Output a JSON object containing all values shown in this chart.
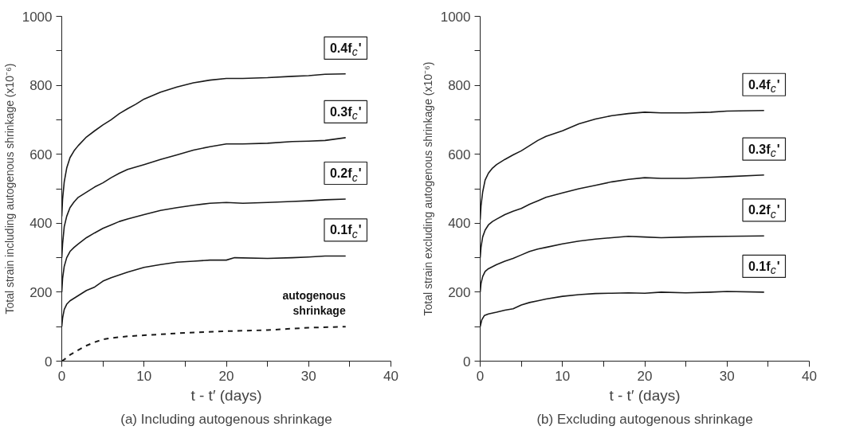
{
  "chart_data": [
    {
      "type": "line",
      "title": "(a) Including autogenous shrinkage",
      "xlabel": "t - t′ (days)",
      "ylabel": "Total strain including autogenous shrinkage (x10⁻⁶)",
      "xlim": [
        0,
        40
      ],
      "ylim": [
        0,
        1000
      ],
      "xticks": [
        0,
        {
          "value": 5,
          "label": null
        },
        10,
        {
          "value": 15,
          "label": null
        },
        20,
        {
          "value": 25,
          "label": null
        },
        30,
        {
          "value": 35,
          "label": null
        },
        40
      ],
      "yticks": [
        0,
        {
          "value": 100,
          "label": null
        },
        200,
        {
          "value": 300,
          "label": null
        },
        400,
        {
          "value": 500,
          "label": null
        },
        600,
        {
          "value": 700,
          "label": null
        },
        800,
        {
          "value": 900,
          "label": null
        },
        1000
      ],
      "grid": false,
      "marker": "none",
      "line_style": "solid",
      "series": [
        {
          "name": "0.4f$_{c}$'",
          "color": "#1a1a1a",
          "x": [
            0,
            0.1,
            0.3,
            0.6,
            1,
            1.5,
            2,
            3,
            4,
            5,
            6,
            7,
            8,
            9,
            10,
            12,
            14,
            16,
            18,
            20,
            22,
            25,
            28,
            30,
            32,
            34.5
          ],
          "values": [
            420,
            470,
            520,
            560,
            590,
            610,
            625,
            650,
            668,
            685,
            700,
            718,
            732,
            745,
            760,
            780,
            795,
            807,
            815,
            820,
            820,
            822,
            826,
            828,
            832,
            833
          ]
        },
        {
          "name": "0.3f$_{c}$'",
          "color": "#1a1a1a",
          "x": [
            0,
            0.1,
            0.3,
            0.6,
            1,
            1.5,
            2,
            3,
            4,
            5,
            6,
            7,
            8,
            10,
            12,
            14,
            16,
            18,
            20,
            22,
            25,
            28,
            30,
            32,
            34.5
          ],
          "values": [
            300,
            340,
            390,
            420,
            445,
            462,
            475,
            490,
            505,
            517,
            532,
            545,
            556,
            570,
            585,
            598,
            612,
            622,
            630,
            630,
            632,
            637,
            638,
            640,
            648
          ]
        },
        {
          "name": "0.2f$_{c}$'",
          "color": "#1a1a1a",
          "x": [
            0,
            0.1,
            0.3,
            0.6,
            1,
            1.5,
            2,
            3,
            4,
            5,
            6,
            7,
            8,
            10,
            12,
            14,
            16,
            18,
            20,
            22,
            25,
            28,
            30,
            32,
            34.5
          ],
          "values": [
            200,
            240,
            275,
            300,
            318,
            330,
            340,
            358,
            372,
            385,
            395,
            405,
            412,
            425,
            437,
            445,
            452,
            458,
            460,
            458,
            460,
            463,
            465,
            468,
            470
          ]
        },
        {
          "name": "0.1f$_{c}$'",
          "color": "#1a1a1a",
          "x": [
            0,
            0.1,
            0.3,
            0.6,
            1,
            2,
            3,
            4,
            5,
            6,
            7,
            8,
            10,
            12,
            14,
            16,
            18,
            20,
            21,
            25,
            28,
            30,
            32,
            34.5
          ],
          "values": [
            100,
            125,
            150,
            165,
            175,
            190,
            205,
            215,
            232,
            242,
            250,
            258,
            272,
            280,
            287,
            290,
            293,
            293,
            300,
            298,
            300,
            302,
            305,
            305
          ]
        },
        {
          "name": "autogenous shrinkage",
          "color": "#1a1a1a",
          "line_style": "dashed",
          "x": [
            0,
            0.5,
            1,
            2,
            3,
            4,
            5,
            6,
            8,
            10,
            15,
            20,
            25,
            30,
            34.5
          ],
          "values": [
            0,
            8,
            18,
            32,
            45,
            55,
            63,
            67,
            72,
            75,
            82,
            87,
            90,
            97,
            100
          ]
        }
      ]
    },
    {
      "type": "line",
      "title": "(b) Excluding autogenous shrinkage",
      "xlabel": "t - t′ (days)",
      "ylabel": "Total strain excluding autogenous shrinkage (x10⁻⁶)",
      "xlim": [
        0,
        40
      ],
      "ylim": [
        0,
        1000
      ],
      "xticks": [
        0,
        {
          "value": 5,
          "label": null
        },
        10,
        {
          "value": 15,
          "label": null
        },
        20,
        {
          "value": 25,
          "label": null
        },
        30,
        {
          "value": 35,
          "label": null
        },
        40
      ],
      "yticks": [
        0,
        {
          "value": 100,
          "label": null
        },
        200,
        {
          "value": 300,
          "label": null
        },
        400,
        {
          "value": 500,
          "label": null
        },
        600,
        {
          "value": 700,
          "label": null
        },
        800,
        {
          "value": 900,
          "label": null
        },
        1000
      ],
      "grid": false,
      "marker": "none",
      "line_style": "solid",
      "series": [
        {
          "name": "0.4f$_{c}$'",
          "color": "#1a1a1a",
          "x": [
            0,
            0.1,
            0.3,
            0.6,
            1,
            1.5,
            2,
            3,
            4,
            5,
            6,
            7,
            8,
            10,
            12,
            14,
            16,
            18,
            20,
            22,
            25,
            28,
            30,
            34.5
          ],
          "values": [
            410,
            450,
            490,
            525,
            545,
            560,
            570,
            585,
            598,
            610,
            625,
            640,
            652,
            668,
            688,
            702,
            712,
            718,
            722,
            720,
            720,
            722,
            725,
            727
          ]
        },
        {
          "name": "0.3f$_{c}$'",
          "color": "#1a1a1a",
          "x": [
            0,
            0.1,
            0.3,
            0.6,
            1,
            1.5,
            2,
            3,
            4,
            5,
            6,
            7,
            8,
            10,
            12,
            14,
            16,
            18,
            20,
            22,
            25,
            28,
            30,
            34.5
          ],
          "values": [
            300,
            330,
            360,
            380,
            395,
            405,
            412,
            425,
            435,
            443,
            455,
            465,
            475,
            488,
            500,
            510,
            520,
            527,
            532,
            530,
            530,
            533,
            535,
            540
          ]
        },
        {
          "name": "0.2f$_{c}$'",
          "color": "#1a1a1a",
          "x": [
            0,
            0.1,
            0.3,
            0.6,
            1,
            2,
            3,
            4,
            5,
            6,
            7,
            8,
            10,
            12,
            14,
            16,
            18,
            20,
            22,
            25,
            30,
            34.5
          ],
          "values": [
            200,
            225,
            245,
            260,
            268,
            280,
            290,
            298,
            308,
            318,
            325,
            330,
            340,
            348,
            354,
            358,
            362,
            360,
            358,
            360,
            362,
            363
          ]
        },
        {
          "name": "0.1f$_{c}$'",
          "color": "#1a1a1a",
          "x": [
            0,
            0.2,
            0.5,
            1,
            2,
            3,
            4,
            5,
            6,
            7,
            8,
            10,
            12,
            14,
            16,
            18,
            20,
            22,
            25,
            28,
            30,
            34.5
          ],
          "values": [
            100,
            120,
            132,
            137,
            142,
            148,
            152,
            163,
            170,
            175,
            180,
            188,
            193,
            196,
            197,
            198,
            197,
            200,
            198,
            200,
            202,
            200
          ]
        }
      ]
    }
  ]
}
